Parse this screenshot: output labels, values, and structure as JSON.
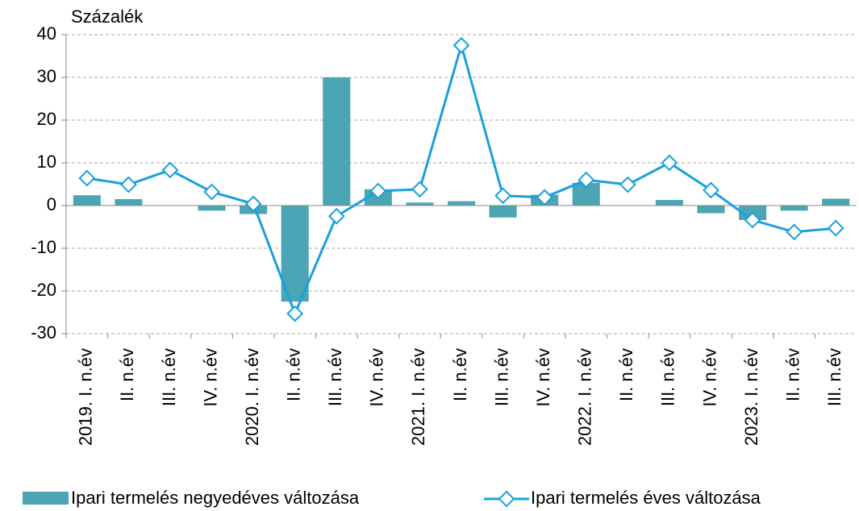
{
  "chart_data": {
    "type": "bar_line",
    "y_label": "Százalék",
    "categories": [
      "2019. I. n.év",
      "II. n.év",
      "III. n.év",
      "IV. n.év",
      "2020. I. n.év",
      "II. n.év",
      "III. n.év",
      "IV. n.év",
      "2021. I. n.év",
      "II. n.év",
      "III. n.év",
      "IV. n.év",
      "2022. I. n.év",
      "II. n.év",
      "III. n.év",
      "IV. n.év",
      "2023. I. n.év",
      "II. n.év",
      "III. n.év"
    ],
    "series": [
      {
        "name": "Ipari termelés negyedéves változása",
        "type": "bar",
        "color": "#4ba5b4",
        "values": [
          2.4,
          1.5,
          0,
          -1.2,
          -2.0,
          -22.5,
          30.0,
          3.8,
          0.7,
          1.0,
          -2.8,
          2.5,
          5.3,
          0,
          1.3,
          -1.8,
          -3.4,
          -1.2,
          1.6
        ]
      },
      {
        "name": "Ipari termelés éves változása",
        "type": "line",
        "color": "#1aa0dc",
        "values": [
          6.4,
          4.9,
          8.3,
          3.2,
          0.4,
          -25.3,
          -2.5,
          3.4,
          3.8,
          37.5,
          2.3,
          1.9,
          6.0,
          4.9,
          10.0,
          3.6,
          -3.4,
          -6.2,
          -5.3
        ]
      }
    ],
    "ylim": [
      -30,
      40
    ],
    "yticks": [
      -30,
      -20,
      -10,
      0,
      10,
      20,
      30,
      40
    ],
    "grid": true,
    "legend": "bottom"
  }
}
